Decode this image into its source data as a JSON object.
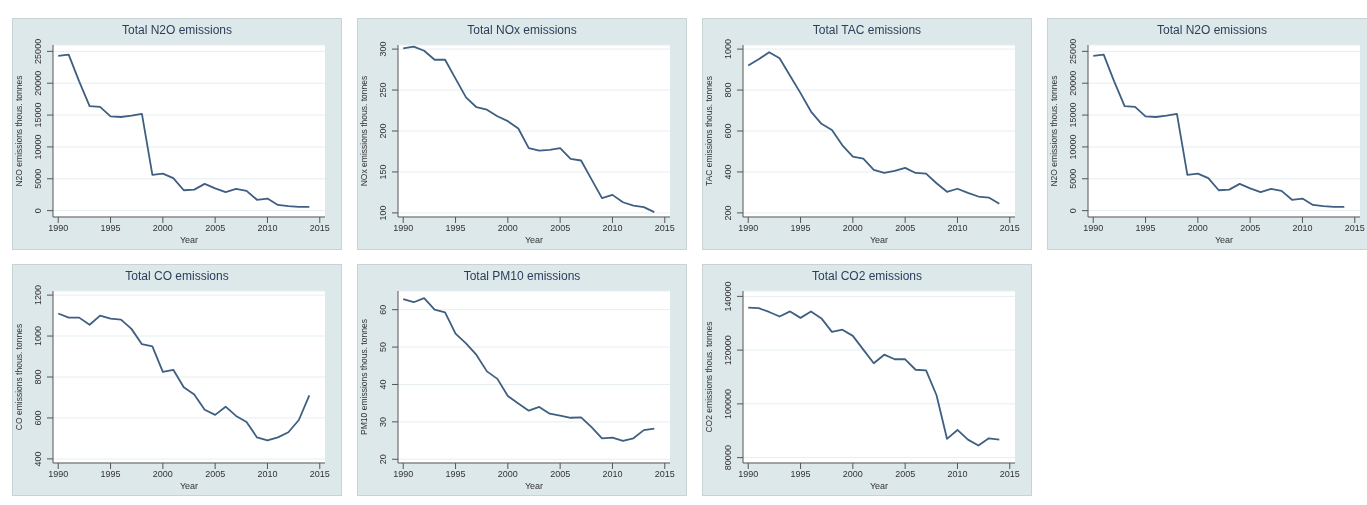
{
  "chart_data": [
    {
      "type": "line",
      "title": "Total N2O emissions",
      "xlabel": "Year",
      "ylabel": "N2O emissions thous. tonnes",
      "x": [
        1990,
        1991,
        1992,
        1993,
        1994,
        1995,
        1996,
        1997,
        1998,
        1999,
        2000,
        2001,
        2002,
        2003,
        2004,
        2005,
        2006,
        2007,
        2008,
        2009,
        2010,
        2011,
        2012,
        2013,
        2014
      ],
      "values": [
        24300,
        24500,
        20300,
        16400,
        16300,
        14800,
        14700,
        14900,
        15200,
        5600,
        5800,
        5100,
        3200,
        3300,
        4200,
        3500,
        2900,
        3400,
        3100,
        1700,
        1900,
        900,
        700,
        600,
        600
      ],
      "color": "#3f5f82",
      "xlim": [
        1989.5,
        2015.5
      ],
      "ylim": [
        -1000,
        26000
      ],
      "xticks": [
        1990,
        1995,
        2000,
        2005,
        2010,
        2015
      ],
      "yticks": [
        0,
        5000,
        10000,
        15000,
        20000,
        25000
      ],
      "grid": "y"
    },
    {
      "type": "line",
      "title": "Total NOx emissions",
      "xlabel": "Year",
      "ylabel": "NOx emissions thous. tonnes",
      "x": [
        1990,
        1991,
        1992,
        1993,
        1994,
        1995,
        1996,
        1997,
        1998,
        1999,
        2000,
        2001,
        2002,
        2003,
        2004,
        2005,
        2006,
        2007,
        2008,
        2009,
        2010,
        2011,
        2012,
        2013,
        2014
      ],
      "values": [
        301,
        303,
        298,
        287,
        287,
        264,
        241,
        229,
        226,
        218,
        212,
        203,
        179,
        176,
        177,
        179,
        166,
        164,
        141,
        118,
        122,
        113,
        109,
        107,
        101
      ],
      "color": "#3f5f82",
      "xlim": [
        1989.5,
        2015.5
      ],
      "ylim": [
        95,
        305
      ],
      "xticks": [
        1990,
        1995,
        2000,
        2005,
        2010,
        2015
      ],
      "yticks": [
        100,
        150,
        200,
        250,
        300
      ],
      "grid": "y"
    },
    {
      "type": "line",
      "title": "Total TAC emissions",
      "xlabel": "Year",
      "ylabel": "TAC emissions thous. tonnes",
      "x": [
        1990,
        1991,
        1992,
        1993,
        1994,
        1995,
        1996,
        1997,
        1998,
        1999,
        2000,
        2001,
        2002,
        2003,
        2004,
        2005,
        2006,
        2007,
        2008,
        2009,
        2010,
        2011,
        2012,
        2013,
        2014
      ],
      "values": [
        920,
        950,
        985,
        955,
        870,
        785,
        695,
        635,
        605,
        530,
        475,
        465,
        410,
        395,
        405,
        420,
        395,
        392,
        345,
        303,
        318,
        298,
        280,
        275,
        245
      ],
      "color": "#3f5f82",
      "xlim": [
        1989.5,
        2015.5
      ],
      "ylim": [
        180,
        1020
      ],
      "xticks": [
        1990,
        1995,
        2000,
        2005,
        2010,
        2015
      ],
      "yticks": [
        200,
        400,
        600,
        800,
        1000
      ],
      "grid": "y"
    },
    {
      "type": "line",
      "title": "Total N2O emissions",
      "xlabel": "Year",
      "ylabel": "N2O emissions thous. tonnes",
      "x": [
        1990,
        1991,
        1992,
        1993,
        1994,
        1995,
        1996,
        1997,
        1998,
        1999,
        2000,
        2001,
        2002,
        2003,
        2004,
        2005,
        2006,
        2007,
        2008,
        2009,
        2010,
        2011,
        2012,
        2013,
        2014
      ],
      "values": [
        24300,
        24500,
        20300,
        16400,
        16300,
        14800,
        14700,
        14900,
        15200,
        5600,
        5800,
        5100,
        3200,
        3300,
        4200,
        3500,
        2900,
        3400,
        3100,
        1700,
        1900,
        900,
        700,
        600,
        600
      ],
      "color": "#3f5f82",
      "xlim": [
        1989.5,
        2015.5
      ],
      "ylim": [
        -1000,
        26000
      ],
      "xticks": [
        1990,
        1995,
        2000,
        2005,
        2010,
        2015
      ],
      "yticks": [
        0,
        5000,
        10000,
        15000,
        20000,
        25000
      ],
      "grid": "y"
    },
    {
      "type": "line",
      "title": "Total CO emissions",
      "xlabel": "Year",
      "ylabel": "CO emissions thous. tonnes",
      "x": [
        1990,
        1991,
        1992,
        1993,
        1994,
        1995,
        1996,
        1997,
        1998,
        1999,
        2000,
        2001,
        2002,
        2003,
        2004,
        2005,
        2006,
        2007,
        2008,
        2009,
        2010,
        2011,
        2012,
        2013,
        2014
      ],
      "values": [
        1110,
        1090,
        1090,
        1055,
        1100,
        1085,
        1080,
        1035,
        960,
        950,
        825,
        835,
        750,
        715,
        640,
        615,
        655,
        610,
        580,
        505,
        490,
        505,
        530,
        590,
        710
      ],
      "color": "#3f5f82",
      "xlim": [
        1989.5,
        2015.5
      ],
      "ylim": [
        380,
        1220
      ],
      "xticks": [
        1990,
        1995,
        2000,
        2005,
        2010,
        2015
      ],
      "yticks": [
        400,
        600,
        800,
        1000,
        1200
      ],
      "grid": "y"
    },
    {
      "type": "line",
      "title": "Total PM10 emissions",
      "xlabel": "Year",
      "ylabel": "PM10 emissions thous. tonnes",
      "x": [
        1990,
        1991,
        1992,
        1993,
        1994,
        1995,
        1996,
        1997,
        1998,
        1999,
        2000,
        2001,
        2002,
        2003,
        2004,
        2005,
        2006,
        2007,
        2008,
        2009,
        2010,
        2011,
        2012,
        2013,
        2014
      ],
      "values": [
        62.8,
        62,
        63.1,
        60,
        59.3,
        53.6,
        51,
        47.9,
        43.5,
        41.5,
        36.9,
        34.9,
        33,
        34,
        32.2,
        31.7,
        31.1,
        31.2,
        28.6,
        25.6,
        25.8,
        24.9,
        25.6,
        27.8,
        28.2
      ],
      "color": "#3f5f82",
      "xlim": [
        1989.5,
        2015.5
      ],
      "ylim": [
        19,
        65
      ],
      "xticks": [
        1990,
        1995,
        2000,
        2005,
        2010,
        2015
      ],
      "yticks": [
        20,
        30,
        40,
        50,
        60
      ],
      "grid": "y"
    },
    {
      "type": "line",
      "title": "Total CO2 emissions",
      "xlabel": "Year",
      "ylabel": "CO2 emissions thous. tonnes",
      "x": [
        1990,
        1991,
        1992,
        1993,
        1994,
        1995,
        1996,
        1997,
        1998,
        1999,
        2000,
        2001,
        2002,
        2003,
        2004,
        2005,
        2006,
        2007,
        2008,
        2009,
        2010,
        2011,
        2012,
        2013,
        2014
      ],
      "values": [
        135800,
        135600,
        134200,
        132500,
        134400,
        132000,
        134400,
        131800,
        126800,
        127600,
        125300,
        120200,
        115100,
        118300,
        116600,
        116600,
        112700,
        112500,
        103200,
        87000,
        90300,
        86700,
        84500,
        87200,
        86700
      ],
      "color": "#3f5f82",
      "xlim": [
        1989.5,
        2015.5
      ],
      "ylim": [
        78000,
        142000
      ],
      "xticks": [
        1990,
        1995,
        2000,
        2005,
        2010,
        2015
      ],
      "yticks": [
        80000,
        100000,
        120000,
        140000
      ],
      "grid": "y"
    }
  ]
}
